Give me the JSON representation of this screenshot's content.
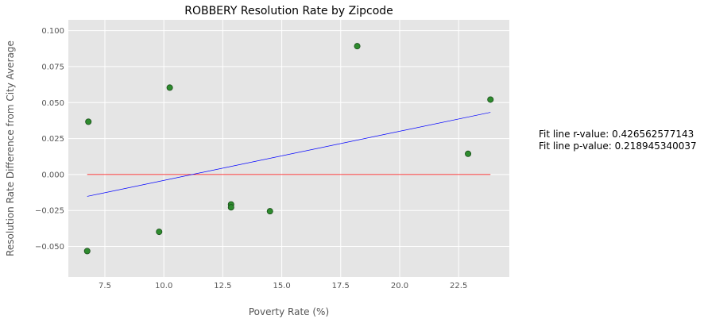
{
  "chart_data": {
    "type": "scatter",
    "title": "ROBBERY Resolution Rate by Zipcode",
    "xlabel": "Poverty Rate (%)",
    "ylabel": "Resolution Rate Difference from City Average",
    "xlim": [
      5.95,
      24.65
    ],
    "ylim": [
      -0.0712,
      0.1075
    ],
    "x_ticks": [
      7.5,
      10.0,
      12.5,
      15.0,
      17.5,
      20.0,
      22.5
    ],
    "x_tick_labels": [
      "7.5",
      "10.0",
      "12.5",
      "15.0",
      "17.5",
      "20.0",
      "22.5"
    ],
    "y_ticks": [
      -0.05,
      -0.025,
      0.0,
      0.025,
      0.05,
      0.075,
      0.1
    ],
    "y_tick_labels": [
      "−0.050",
      "−0.025",
      "0.000",
      "0.025",
      "0.050",
      "0.075",
      "0.100"
    ],
    "grid": true,
    "points": [
      {
        "x": 6.75,
        "y": -0.0532
      },
      {
        "x": 6.8,
        "y": 0.0367
      },
      {
        "x": 9.8,
        "y": -0.0398
      },
      {
        "x": 10.25,
        "y": 0.0604
      },
      {
        "x": 12.85,
        "y": -0.0208
      },
      {
        "x": 12.85,
        "y": -0.0228
      },
      {
        "x": 14.5,
        "y": -0.0255
      },
      {
        "x": 18.2,
        "y": 0.0892
      },
      {
        "x": 22.9,
        "y": 0.0144
      },
      {
        "x": 23.85,
        "y": 0.0521
      }
    ],
    "fit_line": {
      "x": [
        6.75,
        23.85
      ],
      "y": [
        -0.0152,
        0.0432
      ]
    },
    "zero_line": {
      "x": [
        6.75,
        23.85
      ],
      "y": [
        0.0,
        0.0
      ]
    },
    "colors": {
      "background": "#e5e5e5",
      "grid": "#ffffff",
      "points": "#2e8b2e",
      "point_edge": "#1a4d1a",
      "fit_line": "#0000ff",
      "zero_line": "#ff0000"
    }
  },
  "annotations": {
    "r_value": "Fit line r-value: 0.426562577143",
    "p_value": "Fit line p-value: 0.218945340037"
  }
}
